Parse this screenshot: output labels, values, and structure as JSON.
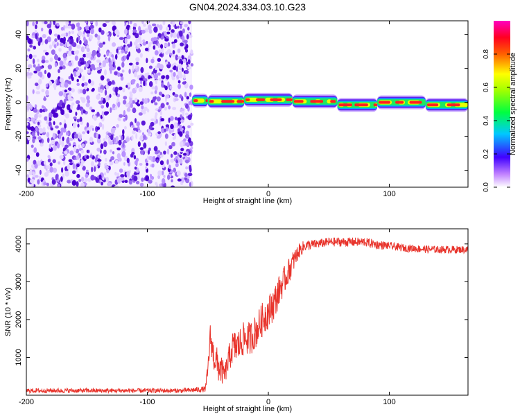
{
  "figure": {
    "title": "GN04.2024.334.03.10.G23"
  },
  "chart_data": [
    {
      "type": "heatmap",
      "title": "GN04.2024.334.03.10.G23",
      "xlabel": "Height of straight line (km)",
      "ylabel": "Frequency (Hz)",
      "xlim": [
        -200,
        165
      ],
      "ylim": [
        -50,
        48
      ],
      "x_ticks": [
        -200,
        -100,
        0,
        100
      ],
      "y_ticks": [
        -40,
        -20,
        0,
        20,
        40
      ],
      "noise_region_x": [
        -200,
        -63
      ],
      "signal_segments": [
        {
          "x": [
            -63,
            -50
          ],
          "freq": 1.0
        },
        {
          "x": [
            -50,
            -20
          ],
          "freq": 0.5
        },
        {
          "x": [
            -20,
            20
          ],
          "freq": 1.5
        },
        {
          "x": [
            20,
            57
          ],
          "freq": 0.5
        },
        {
          "x": [
            57,
            90
          ],
          "freq": -1.5
        },
        {
          "x": [
            90,
            130
          ],
          "freq": 0.0
        },
        {
          "x": [
            130,
            165
          ],
          "freq": -1.5
        }
      ],
      "colorbar": {
        "label": "Normalized spectral amplitude",
        "range": [
          0,
          1
        ],
        "ticks": [
          "0.0",
          "0.2",
          "0.4",
          "0.6",
          "0.8"
        ],
        "colormap": "rainbow (white-violet-blue-cyan-green-yellow-red-magenta)"
      },
      "grid": false
    },
    {
      "type": "line",
      "xlabel": "Height of straight line (km)",
      "ylabel": "SNR (10 * v/v)",
      "xlim": [
        -200,
        165
      ],
      "ylim": [
        0,
        4400
      ],
      "x_ticks": [
        -200,
        -100,
        0,
        100
      ],
      "y_ticks": [
        1000,
        2000,
        3000,
        4000
      ],
      "series": [
        {
          "color": "#e8342c",
          "x": [
            -200,
            -150,
            -100,
            -70,
            -52,
            -50,
            -48,
            -45,
            -40,
            -36,
            -30,
            -25,
            -20,
            -15,
            -10,
            -5,
            0,
            5,
            10,
            15,
            20,
            25,
            30,
            40,
            50,
            60,
            70,
            80,
            90,
            100,
            110,
            120,
            130,
            140,
            150,
            165
          ],
          "y": [
            120,
            120,
            120,
            120,
            160,
            650,
            1550,
            1000,
            700,
            550,
            1250,
            1300,
            1500,
            1500,
            1700,
            2000,
            2200,
            2450,
            2850,
            3150,
            3500,
            3800,
            3950,
            4000,
            4050,
            4050,
            4050,
            4050,
            3980,
            3950,
            3900,
            3880,
            3860,
            3850,
            3850,
            3850
          ],
          "noise": [
            60,
            60,
            60,
            60,
            80,
            250,
            350,
            400,
            450,
            250,
            450,
            450,
            450,
            450,
            450,
            450,
            450,
            450,
            400,
            350,
            300,
            200,
            150,
            120,
            120,
            120,
            120,
            120,
            120,
            100,
            100,
            100,
            100,
            100,
            100,
            100
          ]
        }
      ],
      "grid": false
    }
  ]
}
